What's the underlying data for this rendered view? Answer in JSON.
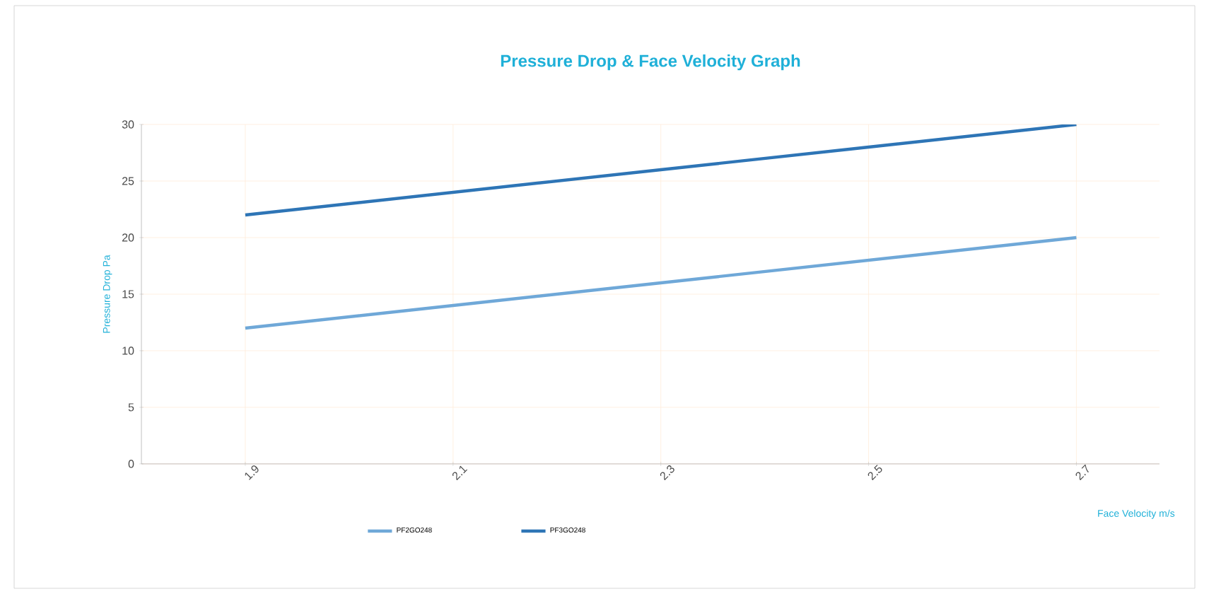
{
  "chart_data": {
    "type": "line",
    "title": "Pressure Drop  &  Face Velocity  Graph",
    "xlabel": "Face Velocity  m/s",
    "ylabel": "Pressure Drop  Pa",
    "categories": [
      "1.9",
      "2.1",
      "2.3",
      "2.5",
      "2.7"
    ],
    "series": [
      {
        "name": "PF2GO248",
        "color": "#6fa8d8",
        "values": [
          12,
          14,
          16,
          18,
          20
        ]
      },
      {
        "name": "PF3GO248",
        "color": "#2e75b6",
        "values": [
          22,
          24,
          26,
          28,
          30
        ]
      }
    ],
    "ylim": [
      0,
      30
    ],
    "yticks": [
      0,
      5,
      10,
      15,
      20,
      25,
      30
    ],
    "grid": true,
    "legend": "bottom",
    "marker": "none",
    "line_style": "solid"
  }
}
